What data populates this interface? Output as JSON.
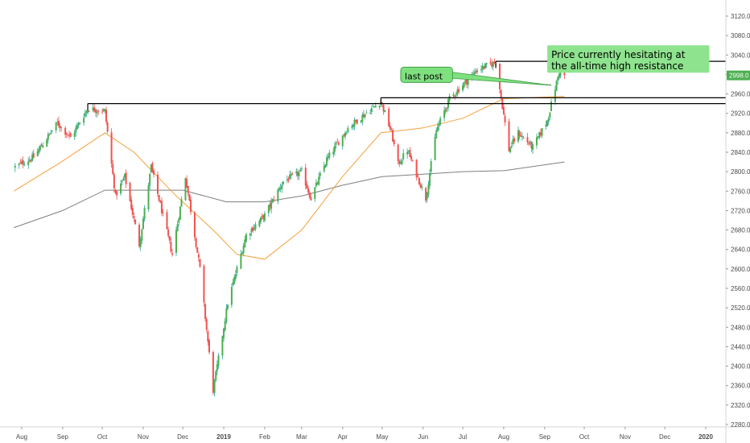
{
  "chart_data": {
    "type": "candlestick",
    "instrument_price_label": "2998.0",
    "ylim": [
      2270,
      3160
    ],
    "y_ticks": [
      2280,
      2320,
      2360,
      2400,
      2440,
      2480,
      2520,
      2560,
      2600,
      2640,
      2680,
      2720,
      2760,
      2800,
      2840,
      2880,
      2920,
      2960,
      3000,
      3040,
      3080,
      3120
    ],
    "y_tick_labels": [
      "2280.0",
      "2320.0",
      "2360.0",
      "2400.0",
      "2440.0",
      "2480.0",
      "2520.0",
      "2560.0",
      "2600.0",
      "2640.0",
      "2680.0",
      "2720.0",
      "2760.0",
      "2800.0",
      "2840.0",
      "2880.0",
      "2920.0",
      "2960.0",
      "3000.0",
      "3040.0",
      "3080.0",
      "3120.0"
    ],
    "x_range": [
      "2018-07-26",
      "2020-01-31"
    ],
    "x_ticks": [
      {
        "label": "Aug",
        "date": "2018-08-01",
        "bold": false
      },
      {
        "label": "Sep",
        "date": "2018-09-01",
        "bold": false
      },
      {
        "label": "Oct",
        "date": "2018-10-01",
        "bold": false
      },
      {
        "label": "Nov",
        "date": "2018-11-01",
        "bold": false
      },
      {
        "label": "Dec",
        "date": "2018-12-01",
        "bold": false
      },
      {
        "label": "2019",
        "date": "2019-01-01",
        "bold": true
      },
      {
        "label": "Feb",
        "date": "2019-02-01",
        "bold": false
      },
      {
        "label": "Mar",
        "date": "2019-03-01",
        "bold": false
      },
      {
        "label": "Apr",
        "date": "2019-04-01",
        "bold": false
      },
      {
        "label": "May",
        "date": "2019-05-01",
        "bold": false
      },
      {
        "label": "Jun",
        "date": "2019-06-01",
        "bold": false
      },
      {
        "label": "Jul",
        "date": "2019-07-01",
        "bold": false
      },
      {
        "label": "Aug",
        "date": "2019-08-01",
        "bold": false
      },
      {
        "label": "Sep",
        "date": "2019-09-01",
        "bold": false
      },
      {
        "label": "Oct",
        "date": "2019-10-01",
        "bold": false
      },
      {
        "label": "Nov",
        "date": "2019-11-01",
        "bold": false
      },
      {
        "label": "Dec",
        "date": "2019-12-01",
        "bold": false
      },
      {
        "label": "2020",
        "date": "2020-01-01",
        "bold": true
      }
    ],
    "close_anchors": [
      [
        "2018-07-27",
        2810
      ],
      [
        "2018-08-10",
        2830
      ],
      [
        "2018-08-28",
        2900
      ],
      [
        "2018-09-07",
        2870
      ],
      [
        "2018-09-20",
        2930
      ],
      [
        "2018-10-03",
        2925
      ],
      [
        "2018-10-11",
        2750
      ],
      [
        "2018-10-18",
        2790
      ],
      [
        "2018-10-29",
        2650
      ],
      [
        "2018-11-07",
        2810
      ],
      [
        "2018-11-23",
        2630
      ],
      [
        "2018-12-03",
        2790
      ],
      [
        "2018-12-14",
        2600
      ],
      [
        "2018-12-24",
        2350
      ],
      [
        "2019-01-04",
        2530
      ],
      [
        "2019-01-18",
        2670
      ],
      [
        "2019-02-01",
        2710
      ],
      [
        "2019-02-15",
        2780
      ],
      [
        "2019-03-01",
        2800
      ],
      [
        "2019-03-08",
        2745
      ],
      [
        "2019-03-20",
        2825
      ],
      [
        "2019-04-05",
        2890
      ],
      [
        "2019-04-30",
        2945
      ],
      [
        "2019-05-08",
        2880
      ],
      [
        "2019-05-13",
        2815
      ],
      [
        "2019-05-20",
        2845
      ],
      [
        "2019-06-03",
        2745
      ],
      [
        "2019-06-11",
        2885
      ],
      [
        "2019-06-21",
        2950
      ],
      [
        "2019-07-12",
        3010
      ],
      [
        "2019-07-26",
        3025
      ],
      [
        "2019-08-05",
        2845
      ],
      [
        "2019-08-12",
        2880
      ],
      [
        "2019-08-23",
        2850
      ],
      [
        "2019-09-03",
        2905
      ],
      [
        "2019-09-12",
        3005
      ],
      [
        "2019-09-16",
        2998
      ]
    ],
    "ma_fast": [
      [
        "2018-07-26",
        2760
      ],
      [
        "2018-08-31",
        2820
      ],
      [
        "2018-10-03",
        2880
      ],
      [
        "2018-10-25",
        2840
      ],
      [
        "2018-11-26",
        2750
      ],
      [
        "2018-12-24",
        2680
      ],
      [
        "2019-01-11",
        2630
      ],
      [
        "2019-02-01",
        2620
      ],
      [
        "2019-03-01",
        2680
      ],
      [
        "2019-04-01",
        2790
      ],
      [
        "2019-04-30",
        2880
      ],
      [
        "2019-06-01",
        2890
      ],
      [
        "2019-07-01",
        2910
      ],
      [
        "2019-08-01",
        2950
      ],
      [
        "2019-09-16",
        2955
      ]
    ],
    "ma_slow": [
      [
        "2018-07-26",
        2685
      ],
      [
        "2018-09-01",
        2720
      ],
      [
        "2018-10-03",
        2762
      ],
      [
        "2018-12-01",
        2762
      ],
      [
        "2019-01-03",
        2738
      ],
      [
        "2019-02-01",
        2738
      ],
      [
        "2019-03-01",
        2750
      ],
      [
        "2019-04-01",
        2772
      ],
      [
        "2019-05-01",
        2790
      ],
      [
        "2019-06-01",
        2795
      ],
      [
        "2019-07-01",
        2800
      ],
      [
        "2019-08-01",
        2802
      ],
      [
        "2019-09-16",
        2820
      ]
    ],
    "horizontal_levels": [
      {
        "name": "prior-high-level",
        "value": 2940,
        "from": "2018-09-20"
      },
      {
        "name": "support-level",
        "value": 2952,
        "from": "2019-04-30"
      },
      {
        "name": "all-time-high-resistance",
        "value": 3027,
        "from": "2019-07-26"
      }
    ],
    "trend_line": {
      "from": [
        "2019-07-01",
        2993
      ],
      "to": [
        "2019-09-06",
        2978
      ]
    },
    "annotations": [
      {
        "name": "last-post-callout",
        "lines": [
          "last post"
        ],
        "anchor_date": "2019-05-15",
        "anchor_value": 3015,
        "fill": "#7ee07e"
      },
      {
        "name": "price-note-callout",
        "lines": [
          "Price currently hesitating at",
          "the all-time high resistance"
        ],
        "anchor_date": "2019-09-03",
        "anchor_value": 3060,
        "fill": "#8ee48e"
      }
    ],
    "colors": {
      "up": "#26a69a",
      "up_fill": "#4caf50",
      "down": "#ef5350",
      "ma_fast": "#f5a03c",
      "ma_slow": "#7f7f7f",
      "price_badge": "#4caf50",
      "level": "#000000"
    }
  }
}
